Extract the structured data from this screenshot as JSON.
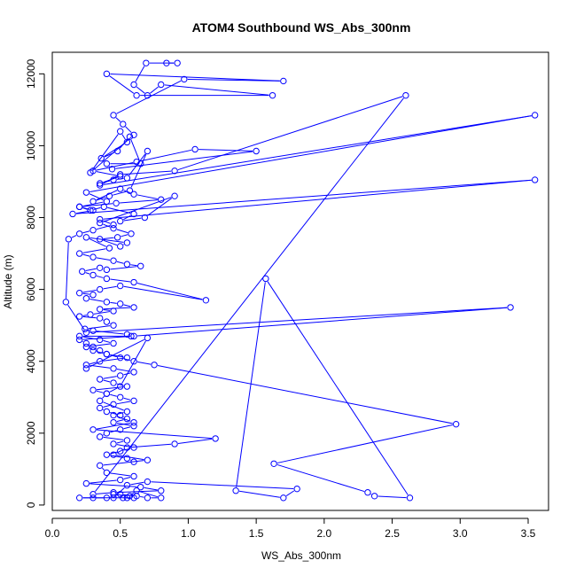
{
  "chart_data": {
    "type": "line",
    "title": "ATOM4 Southbound WS_Abs_300nm",
    "xlabel": "WS_Abs_300nm",
    "ylabel": "Altitude (m)",
    "xlim": [
      0,
      3.65
    ],
    "ylim": [
      -150,
      12600
    ],
    "xticks": [
      "0.0",
      "0.5",
      "1.0",
      "1.5",
      "2.0",
      "2.5",
      "3.0",
      "3.5"
    ],
    "yticks": [
      "0",
      "2000",
      "4000",
      "6000",
      "8000",
      "10000",
      "12000"
    ],
    "line_color": "#0000ff",
    "marker": "open-circle",
    "grid": false,
    "legend": "none",
    "series": [
      {
        "x": [
          0.84,
          0.92,
          0.69,
          0.6,
          0.7,
          0.8,
          1.62,
          0.62,
          0.4,
          1.7,
          0.97,
          0.45,
          0.52,
          0.6,
          0.28,
          0.5,
          0.55,
          0.36,
          0.48,
          0.57,
          0.65,
          0.4,
          0.44,
          1.5,
          1.05,
          0.62,
          0.3,
          0.5,
          0.35,
          0.45,
          0.55,
          0.7,
          0.57,
          0.42,
          0.3,
          0.5,
          0.6,
          0.8,
          0.47,
          0.2,
          0.28,
          0.38,
          0.6,
          0.5,
          0.68,
          0.9,
          0.35,
          0.45,
          0.58,
          0.48,
          0.35,
          0.5,
          0.55,
          0.25,
          0.42,
          0.2,
          0.3,
          0.45,
          0.55,
          0.65,
          0.4,
          0.35,
          0.22,
          0.3,
          0.4,
          0.6,
          1.13,
          0.5,
          0.35,
          0.2,
          0.3,
          0.25,
          0.4,
          0.5,
          0.6,
          0.35,
          0.45,
          0.28,
          0.2,
          0.35,
          0.4,
          0.45,
          0.24,
          0.3,
          0.55,
          0.58,
          0.2,
          0.35,
          0.45,
          0.25,
          0.3,
          0.4,
          0.55,
          0.35,
          0.25,
          0.45,
          0.6,
          0.5,
          0.35,
          0.45,
          0.55,
          0.3,
          0.4,
          0.5,
          0.6,
          0.45,
          0.35,
          0.4,
          0.5,
          0.55,
          0.45,
          0.6,
          0.5,
          0.4,
          0.35,
          0.55,
          0.45,
          0.6,
          0.5,
          0.4,
          0.55,
          0.6
        ],
        "y": [
          12300,
          12300,
          12300,
          11700,
          11400,
          11700,
          11400,
          11400,
          12000,
          11800,
          11850,
          10850,
          10600,
          10300,
          9250,
          10400,
          10100,
          9650,
          9850,
          10250,
          9500,
          9500,
          9350,
          9850,
          9900,
          9550,
          9300,
          9150,
          8950,
          9050,
          9100,
          9850,
          8750,
          8600,
          8450,
          8800,
          8650,
          8500,
          8400,
          8300,
          8200,
          8300,
          8100,
          7900,
          8000,
          8600,
          7850,
          7700,
          7550,
          7450,
          7400,
          7200,
          7300,
          7450,
          7150,
          7000,
          6900,
          6800,
          6700,
          6650,
          6550,
          6600,
          6500,
          6400,
          6300,
          6200,
          5700,
          6100,
          6000,
          5900,
          5850,
          5750,
          5650,
          5600,
          5500,
          5450,
          5400,
          5300,
          5250,
          5200,
          5100,
          5000,
          4900,
          4850,
          4750,
          4700,
          4700,
          4600,
          4500,
          4400,
          4300,
          4200,
          4100,
          4000,
          3900,
          3800,
          3700,
          3600,
          3500,
          3400,
          3300,
          3200,
          3100,
          3000,
          2900,
          2800,
          2700,
          2600,
          2500,
          2400,
          2300,
          2200,
          2100,
          2000,
          1900,
          1800,
          1700,
          1600,
          1500,
          1400,
          1300,
          1200
        ]
      },
      {
        "x": [
          0.25,
          0.7,
          0.5,
          0.4,
          0.35,
          0.55,
          0.45,
          0.6,
          0.3,
          1.2,
          0.9,
          0.55,
          0.45,
          0.7,
          0.35,
          0.4,
          0.6,
          0.5,
          0.25,
          0.65,
          0.8,
          0.45,
          0.3,
          2.6,
          0.9,
          0.5,
          0.35,
          3.55,
          0.25,
          0.4,
          0.2,
          0.3,
          0.15,
          3.55,
          0.35,
          0.45,
          0.3,
          0.2,
          0.12,
          0.1,
          0.25,
          3.37,
          0.6,
          0.2,
          0.25,
          0.3,
          0.35,
          0.4,
          0.5,
          0.6,
          0.75,
          2.97,
          1.63,
          2.32,
          2.37,
          2.63,
          1.57,
          1.35,
          1.7,
          1.8,
          0.7,
          0.55,
          0.45,
          0.4,
          0.3,
          0.2,
          0.6,
          0.52,
          0.57,
          0.45,
          0.5,
          0.62,
          0.7,
          0.8,
          0.62,
          0.55
        ],
        "y": [
          3800,
          4650,
          3300,
          3100,
          2900,
          2600,
          2500,
          2300,
          2100,
          1850,
          1700,
          1600,
          1400,
          1250,
          1100,
          900,
          800,
          700,
          600,
          500,
          400,
          350,
          300,
          11400,
          9300,
          9200,
          8900,
          10850,
          8700,
          8450,
          8300,
          8200,
          8100,
          9050,
          7950,
          7800,
          7650,
          7550,
          7400,
          5650,
          4800,
          5500,
          4700,
          4600,
          4500,
          4400,
          4300,
          4200,
          4100,
          4000,
          3900,
          2250,
          1150,
          350,
          250,
          200,
          6300,
          400,
          200,
          450,
          650,
          550,
          200,
          200,
          200,
          200,
          200,
          200,
          250,
          300,
          300,
          250,
          200,
          200,
          400,
          200
        ]
      }
    ]
  }
}
